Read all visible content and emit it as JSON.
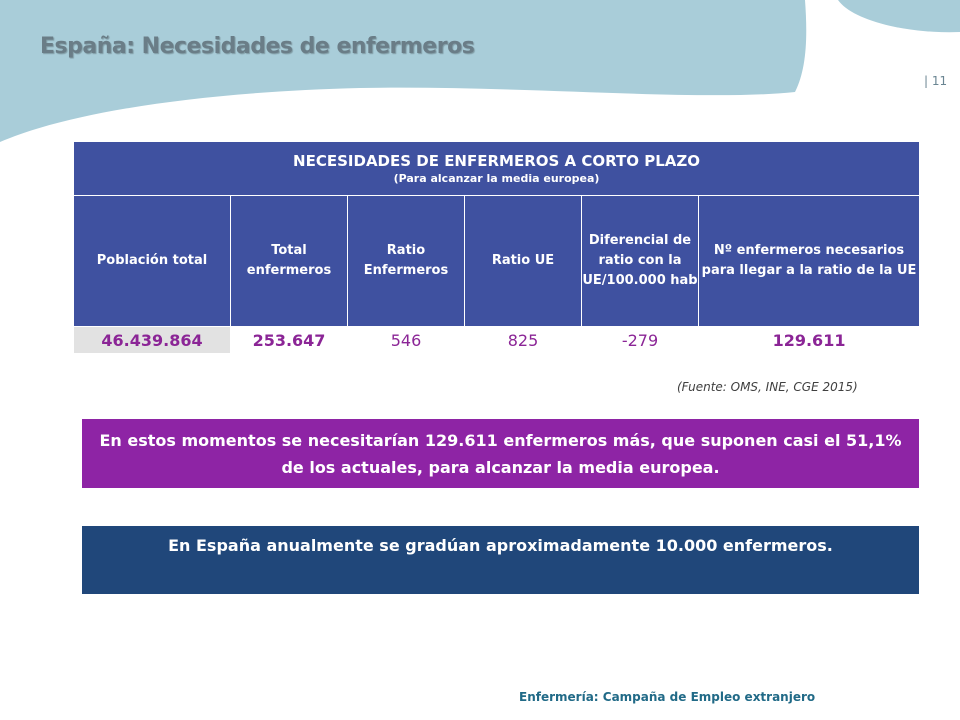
{
  "slide": {
    "title": "España: Necesidades de enfermeros",
    "page_number": "| 11",
    "footer": "Enfermería: Campaña de Empleo extranjero"
  },
  "table": {
    "heading": "NECESIDADES DE ENFERMEROS A CORTO PLAZO",
    "subheading": "(Para alcanzar la media europea)",
    "columns": [
      "Población  total",
      "Total enfermeros",
      "Ratio Enfermeros",
      "Ratio UE",
      "Diferencial de ratio con la UE/100.000 hab",
      "Nº enfermeros necesarios para llegar a la ratio de la UE"
    ],
    "row": [
      "46.439.864",
      "253.647",
      "546",
      "825",
      "-279",
      "129.611"
    ]
  },
  "source_note": "(Fuente: OMS, INE, CGE 2015)",
  "highlight_text": "En estos momentos se necesitarían  129.611 enfermeros más, que suponen casi el 51,1% de los actuales, para alcanzar la media europea.",
  "info_text": "En España anualmente se gradúan aproximadamente 10.000 enfermeros.",
  "colors": {
    "table_header": "#3f51a0",
    "highlight_box": "#8e24a5",
    "info_box": "#20477a",
    "value_text": "#8b2596",
    "background_wave": "#a9cdd9"
  }
}
